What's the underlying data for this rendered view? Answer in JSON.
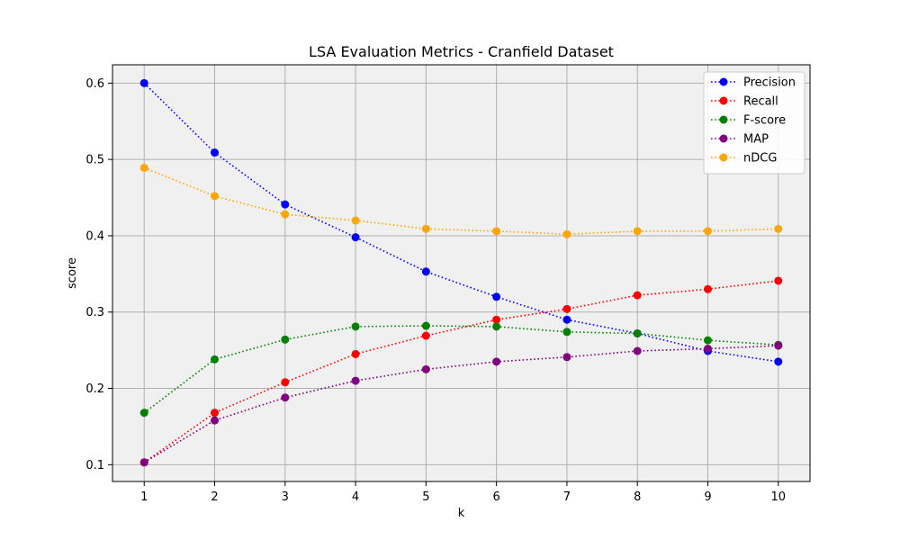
{
  "chart_data": {
    "type": "line",
    "title": "LSA Evaluation Metrics - Cranfield Dataset",
    "xlabel": "k",
    "ylabel": "score",
    "x": [
      1,
      2,
      3,
      4,
      5,
      6,
      7,
      8,
      9,
      10
    ],
    "xticks": [
      "1",
      "2",
      "3",
      "4",
      "5",
      "6",
      "7",
      "8",
      "9",
      "10"
    ],
    "yticks": [
      "0.1",
      "0.2",
      "0.3",
      "0.4",
      "0.5",
      "0.6"
    ],
    "ytick_values": [
      0.1,
      0.2,
      0.3,
      0.4,
      0.5,
      0.6
    ],
    "xlim": [
      0.55,
      10.45
    ],
    "ylim": [
      0.078,
      0.624
    ],
    "grid": true,
    "background": "#f0f0f0",
    "legend_position": "top-right",
    "series": [
      {
        "name": "Precision",
        "color": "#0000ff",
        "values": [
          0.6,
          0.509,
          0.441,
          0.398,
          0.353,
          0.32,
          0.29,
          0.272,
          0.249,
          0.235
        ]
      },
      {
        "name": "Recall",
        "color": "#ff0000",
        "values": [
          0.103,
          0.168,
          0.208,
          0.245,
          0.269,
          0.29,
          0.304,
          0.322,
          0.33,
          0.341
        ]
      },
      {
        "name": "F-score",
        "color": "#008000",
        "values": [
          0.168,
          0.238,
          0.264,
          0.281,
          0.282,
          0.281,
          0.274,
          0.272,
          0.263,
          0.257
        ]
      },
      {
        "name": "MAP",
        "color": "#800080",
        "values": [
          0.103,
          0.158,
          0.188,
          0.21,
          0.225,
          0.235,
          0.241,
          0.249,
          0.252,
          0.256
        ]
      },
      {
        "name": "nDCG",
        "color": "#ffa500",
        "values": [
          0.489,
          0.452,
          0.428,
          0.42,
          0.409,
          0.406,
          0.402,
          0.406,
          0.406,
          0.409
        ]
      }
    ]
  }
}
